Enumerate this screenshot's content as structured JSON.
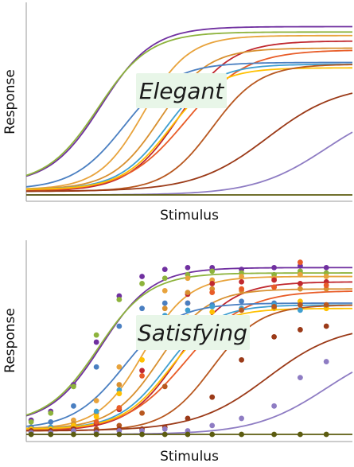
{
  "chart_data": [
    {
      "type": "line",
      "title": "",
      "xlabel": "Stimulus",
      "ylabel": "Response",
      "annotation": "Elegant",
      "show_points": false,
      "xlim": [
        0,
        10
      ],
      "ylim": [
        0,
        1
      ],
      "grid": false,
      "legend": "none",
      "series": [
        {
          "color": "#7030a0",
          "bottom": 0.06,
          "top": 0.94,
          "ec50": 2.3,
          "k": 2.8
        },
        {
          "color": "#8db33c",
          "bottom": 0.06,
          "top": 0.91,
          "ec50": 2.2,
          "k": 2.8
        },
        {
          "color": "#e8a33c",
          "bottom": 0.03,
          "top": 0.89,
          "ec50": 3.6,
          "k": 3.2
        },
        {
          "color": "#c0282f",
          "bottom": 0.02,
          "top": 0.86,
          "ec50": 4.7,
          "k": 2.8
        },
        {
          "color": "#d89030",
          "bottom": 0.03,
          "top": 0.82,
          "ec50": 4.1,
          "k": 3.0
        },
        {
          "color": "#e85c28",
          "bottom": 0.02,
          "top": 0.81,
          "ec50": 4.9,
          "k": 2.4
        },
        {
          "color": "#4a7fc1",
          "bottom": 0.03,
          "top": 0.74,
          "ec50": 3.0,
          "k": 2.8
        },
        {
          "color": "#3f9fd0",
          "bottom": 0.03,
          "top": 0.73,
          "ec50": 4.3,
          "k": 3.0
        },
        {
          "color": "#ffc000",
          "bottom": 0.03,
          "top": 0.71,
          "ec50": 4.4,
          "k": 3.0
        },
        {
          "color": "#b85820",
          "bottom": 0.02,
          "top": 0.73,
          "ec50": 5.7,
          "k": 3.0
        },
        {
          "color": "#9b3a18",
          "bottom": 0.02,
          "top": 0.62,
          "ec50": 7.4,
          "k": 2.0
        },
        {
          "color": "#8e7cc3",
          "bottom": 0.0,
          "top": 0.52,
          "ec50": 9.2,
          "k": 2.0
        },
        {
          "color": "#5c5c10",
          "bottom": 0.0,
          "top": 0.0,
          "ec50": 5.0,
          "k": 1.0
        }
      ]
    },
    {
      "type": "scatter",
      "title": "",
      "xlabel": "Stimulus",
      "ylabel": "Response",
      "annotation": "Satisfying",
      "show_points": true,
      "xlim": [
        0,
        10
      ],
      "ylim": [
        0,
        1
      ],
      "grid": false,
      "legend": "none",
      "x_points": [
        0.15,
        0.75,
        1.45,
        2.15,
        2.85,
        3.55,
        4.25,
        4.95,
        5.7,
        6.6,
        7.6,
        8.4,
        9.2
      ],
      "series": [
        {
          "color": "#7030a0",
          "bottom": 0.06,
          "top": 0.94,
          "ec50": 2.3,
          "k": 2.8,
          "values": [
            0.08,
            0.13,
            0.28,
            0.52,
            0.78,
            0.89,
            0.93,
            0.94,
            0.94,
            0.93,
            0.94,
            0.95,
            0.94
          ]
        },
        {
          "color": "#8db33c",
          "bottom": 0.06,
          "top": 0.91,
          "ec50": 2.2,
          "k": 2.8,
          "values": [
            0.07,
            0.12,
            0.27,
            0.56,
            0.76,
            0.85,
            0.88,
            0.9,
            0.92,
            0.91,
            0.9,
            0.92,
            0.91
          ]
        },
        {
          "color": "#e8a33c",
          "bottom": 0.03,
          "top": 0.89,
          "ec50": 3.6,
          "k": 3.2,
          "values": [
            0.04,
            0.03,
            0.08,
            0.19,
            0.38,
            0.65,
            0.81,
            0.88,
            0.87,
            0.89,
            0.88,
            0.9,
            0.89
          ]
        },
        {
          "color": "#c0282f",
          "bottom": 0.02,
          "top": 0.86,
          "ec50": 4.7,
          "k": 2.8,
          "values": [
            0.02,
            0.03,
            0.04,
            0.06,
            0.14,
            0.36,
            0.61,
            0.79,
            0.85,
            0.86,
            0.87,
            0.85,
            0.86
          ]
        },
        {
          "color": "#d89030",
          "bottom": 0.03,
          "top": 0.82,
          "ec50": 4.1,
          "k": 3.0,
          "values": [
            0.03,
            0.04,
            0.06,
            0.12,
            0.28,
            0.55,
            0.71,
            0.8,
            0.82,
            0.81,
            0.83,
            0.82,
            0.82
          ]
        },
        {
          "color": "#e85c28",
          "bottom": 0.02,
          "top": 0.81,
          "ec50": 4.9,
          "k": 2.4,
          "values": [
            0.02,
            0.03,
            0.03,
            0.07,
            0.15,
            0.33,
            0.6,
            0.74,
            0.8,
            0.82,
            0.83,
            0.97,
            0.84
          ]
        },
        {
          "color": "#4a7fc1",
          "bottom": 0.03,
          "top": 0.74,
          "ec50": 3.0,
          "k": 2.8,
          "values": [
            0.04,
            0.07,
            0.16,
            0.38,
            0.61,
            0.71,
            0.74,
            0.74,
            0.73,
            0.75,
            0.74,
            0.74,
            0.72
          ]
        },
        {
          "color": "#3f9fd0",
          "bottom": 0.03,
          "top": 0.73,
          "ec50": 4.3,
          "k": 3.0,
          "values": [
            0.03,
            0.04,
            0.05,
            0.13,
            0.25,
            0.51,
            0.67,
            0.7,
            0.72,
            0.71,
            0.73,
            0.7,
            0.72
          ]
        },
        {
          "color": "#ffc000",
          "bottom": 0.03,
          "top": 0.71,
          "ec50": 4.4,
          "k": 3.0,
          "values": [
            0.03,
            0.03,
            0.05,
            0.1,
            0.23,
            0.42,
            0.58,
            0.66,
            0.69,
            0.7,
            0.71,
            0.75,
            0.71
          ]
        },
        {
          "color": "#b85820",
          "bottom": 0.02,
          "top": 0.73,
          "ec50": 5.7,
          "k": 3.0,
          "values": [
            0.02,
            0.02,
            0.02,
            0.03,
            0.05,
            0.12,
            0.27,
            0.49,
            0.62,
            0.7,
            0.72,
            0.73,
            0.73
          ]
        },
        {
          "color": "#9b3a18",
          "bottom": 0.02,
          "top": 0.62,
          "ec50": 7.4,
          "k": 2.0,
          "values": [
            0.02,
            0.02,
            0.03,
            0.02,
            0.03,
            0.03,
            0.04,
            0.09,
            0.21,
            0.42,
            0.55,
            0.59,
            0.61
          ]
        },
        {
          "color": "#8e7cc3",
          "bottom": 0.0,
          "top": 0.52,
          "ec50": 9.2,
          "k": 2.0,
          "values": [
            0.01,
            0.01,
            0.02,
            0.01,
            0.02,
            0.02,
            0.03,
            0.02,
            0.05,
            0.09,
            0.16,
            0.32,
            0.41
          ]
        },
        {
          "color": "#5c5c10",
          "bottom": 0.0,
          "top": 0.0,
          "ec50": 5.0,
          "k": 1.0,
          "values": [
            0.0,
            0.0,
            0.0,
            0.0,
            0.0,
            0.0,
            0.0,
            0.0,
            0.0,
            0.0,
            0.0,
            0.0,
            0.0
          ]
        }
      ]
    }
  ]
}
